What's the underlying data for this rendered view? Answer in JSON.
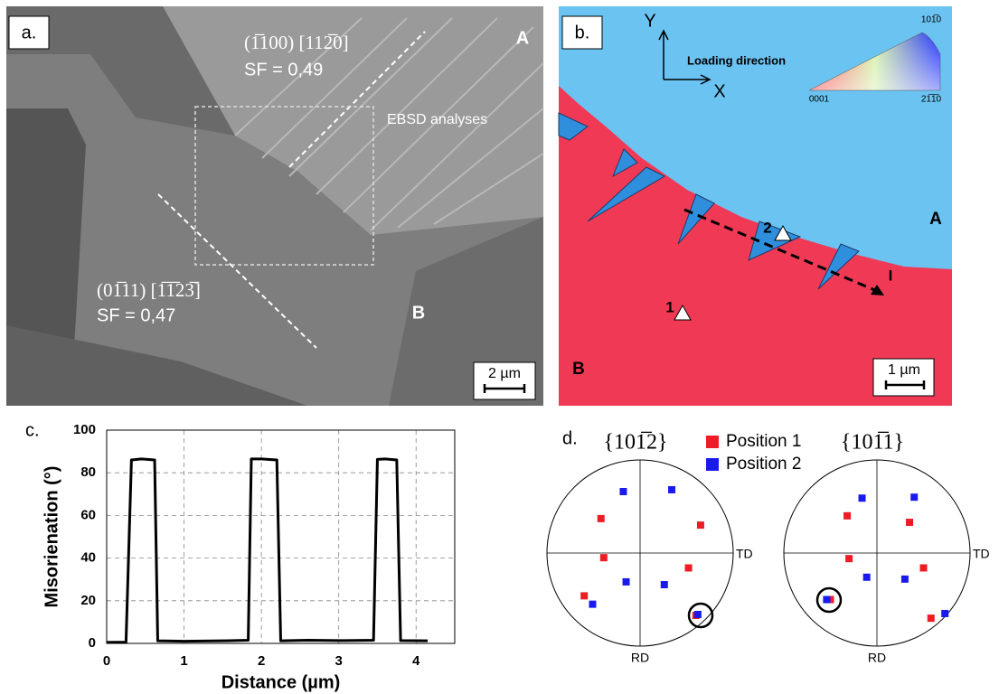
{
  "panel_a": {
    "label": "a.",
    "grain_a": {
      "plane": "(1̅100) [112̅0]",
      "sf": "SF = 0,49",
      "name": "A"
    },
    "ebsd_box": "EBSD analyses",
    "grain_b": {
      "plane": "(01̅11) [1̅1̅23̅]",
      "sf": "SF = 0,47",
      "name": "B"
    },
    "scale_bar": "2 µm"
  },
  "panel_b": {
    "label": "b.",
    "axes": {
      "y": "Y",
      "x": "X",
      "caption": "Loading direction"
    },
    "color_key": [
      "0001",
      "101̅0",
      "21̅1̅0"
    ],
    "positions": [
      "1",
      "2"
    ],
    "profile_end": "I",
    "grains": [
      "A",
      "B"
    ],
    "scale_bar": "1 µm"
  },
  "chart_data": [
    {
      "type": "line",
      "label": "c.",
      "x_label": "Distance (µm)",
      "y_label": "Misorienation (°)",
      "x": [
        0,
        0.25,
        0.32,
        0.45,
        0.62,
        0.66,
        1.0,
        1.5,
        1.83,
        1.87,
        2.0,
        2.2,
        2.25,
        2.6,
        3.0,
        3.45,
        3.5,
        3.6,
        3.75,
        3.8,
        4.15
      ],
      "series": [
        {
          "color": "#000000",
          "values": [
            0.5,
            0.6,
            86,
            86.5,
            86,
            1.2,
            1,
            1.2,
            1.5,
            86.5,
            86.5,
            86,
            1.2,
            1.5,
            1.3,
            1.5,
            86.3,
            86.5,
            86,
            1.3,
            1.2
          ]
        }
      ],
      "xlim": [
        0,
        4.5
      ],
      "xticks": [
        0,
        1,
        2,
        3,
        4
      ],
      "ylim": [
        0,
        100
      ],
      "yticks": [
        0,
        20,
        40,
        60,
        80,
        100
      ],
      "grid": true
    },
    {
      "type": "pole_figure",
      "label": "d.",
      "xlim": [
        -1,
        1
      ],
      "ylim": [
        -1,
        1
      ],
      "series": [
        {
          "name": "Position 1",
          "color": "#ee1c25"
        },
        {
          "name": "Position 2",
          "color": "#1a1aee"
        }
      ],
      "plots": [
        {
          "title": "{101̅2}",
          "x_axis_label": "TD",
          "y_axis_label": "RD",
          "series": [
            {
              "x": [
                -0.42,
                0.65,
                -0.39,
                0.52,
                -0.6,
                0.6
              ],
              "y": [
                0.37,
                0.3,
                -0.05,
                -0.16,
                -0.46,
                -0.67
              ]
            },
            {
              "x": [
                -0.18,
                0.34,
                -0.15,
                0.26,
                -0.51,
                0.62
              ],
              "y": [
                0.66,
                0.68,
                -0.31,
                -0.34,
                -0.55,
                -0.66
              ]
            }
          ]
        },
        {
          "title": "{101̅1}",
          "x_axis_label": "TD",
          "y_axis_label": "RD",
          "series": [
            {
              "x": [
                -0.32,
                0.35,
                -0.3,
                0.5,
                0.58,
                -0.5
              ],
              "y": [
                0.4,
                0.33,
                -0.06,
                -0.16,
                -0.7,
                -0.5
              ]
            },
            {
              "x": [
                -0.16,
                0.4,
                -0.11,
                0.3,
                0.73,
                -0.54
              ],
              "y": [
                0.59,
                0.6,
                -0.26,
                -0.28,
                -0.65,
                -0.5
              ]
            }
          ]
        }
      ]
    }
  ]
}
